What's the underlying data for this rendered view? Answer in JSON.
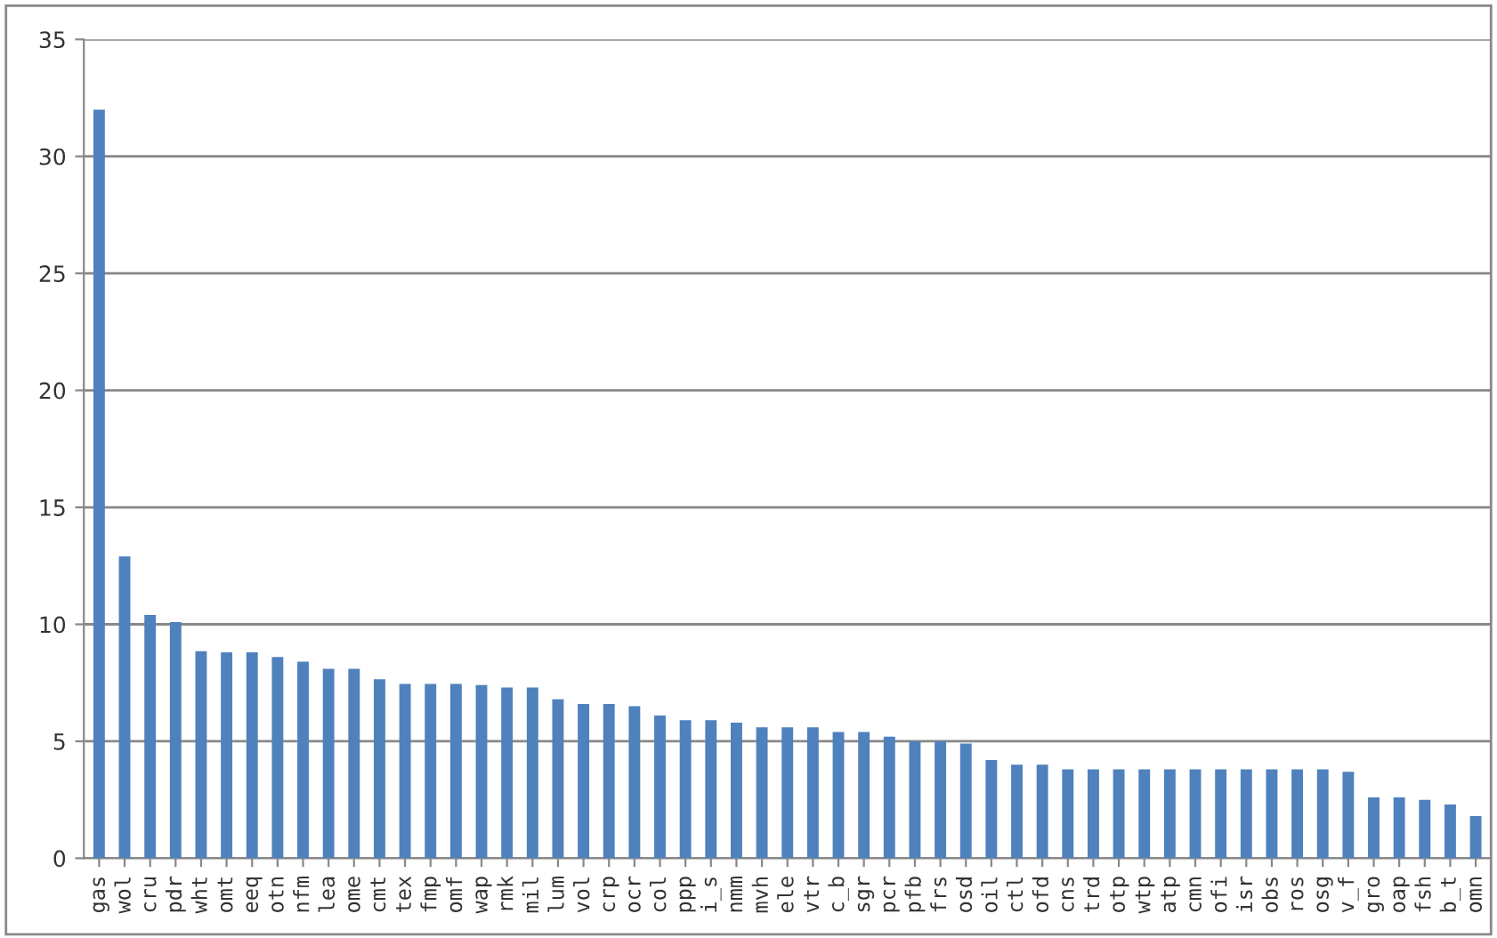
{
  "chart_data": {
    "type": "bar",
    "categories": [
      "gas",
      "wol",
      "cru",
      "pdr",
      "wht",
      "omt",
      "eeq",
      "otn",
      "nfm",
      "lea",
      "ome",
      "cmt",
      "tex",
      "fmp",
      "omf",
      "wap",
      "rmk",
      "mil",
      "lum",
      "vol",
      "crp",
      "ocr",
      "col",
      "ppp",
      "i_s",
      "nmm",
      "mvh",
      "ele",
      "vtr",
      "c_b",
      "sgr",
      "pcr",
      "pfb",
      "frs",
      "osd",
      "oil",
      "ctl",
      "ofd",
      "cns",
      "trd",
      "otp",
      "wtp",
      "atp",
      "cmn",
      "ofi",
      "isr",
      "obs",
      "ros",
      "osg",
      "v_f",
      "gro",
      "oap",
      "fsh",
      "b_t",
      "omn"
    ],
    "values": [
      32.0,
      12.9,
      10.4,
      10.1,
      8.85,
      8.8,
      8.8,
      8.6,
      8.4,
      8.1,
      8.1,
      7.65,
      7.45,
      7.45,
      7.45,
      7.4,
      7.3,
      7.3,
      6.8,
      6.6,
      6.6,
      6.5,
      6.1,
      5.9,
      5.9,
      5.8,
      5.6,
      5.6,
      5.6,
      5.4,
      5.4,
      5.2,
      5.0,
      5.0,
      4.9,
      4.2,
      4.0,
      4.0,
      3.8,
      3.8,
      3.8,
      3.8,
      3.8,
      3.8,
      3.8,
      3.8,
      3.8,
      3.8,
      3.8,
      3.7,
      2.6,
      2.6,
      2.5,
      2.3,
      1.8
    ],
    "color": "#4f81bd",
    "ylim": [
      0,
      35
    ],
    "yticks": [
      0,
      5,
      10,
      15,
      20,
      25,
      30,
      35
    ],
    "grid": "y",
    "legend": false
  }
}
